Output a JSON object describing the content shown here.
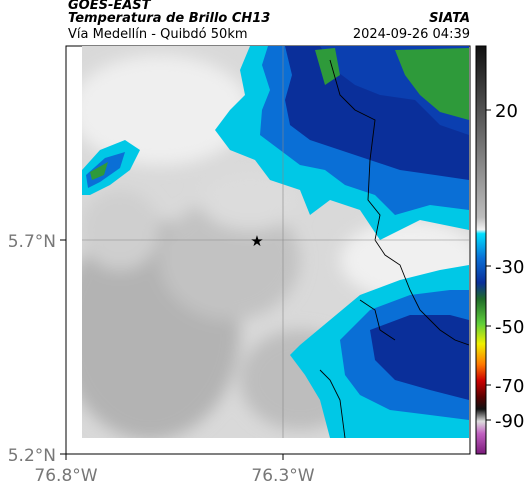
{
  "header": {
    "satellite": "GOES-EAST",
    "product": "Temperatura de Brillo CH13",
    "region": "Vía Medellín - Quibdó 50km",
    "agency": "SIATA",
    "datetime": "2024-09-26 04:39"
  },
  "map": {
    "lat_ticks": [
      "5.7°N",
      "5.2°N"
    ],
    "lon_ticks": [
      "76.8°W",
      "76.3°W"
    ],
    "marker": "star",
    "colors": {
      "land_light": "#ededed",
      "land_mid": "#c8c8c8",
      "land_dark": "#a3a3a3",
      "cloud_cyan": "#00c8e6",
      "cloud_blue": "#0a6fd6",
      "cloud_deep": "#0a2f9a",
      "cloud_green": "#2e9a3a"
    }
  },
  "colorbar": {
    "ticks": [
      "20",
      "-30",
      "-50",
      "-70",
      "-90"
    ]
  }
}
